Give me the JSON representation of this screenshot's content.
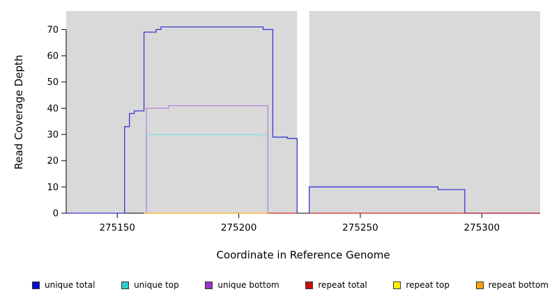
{
  "chart_data": {
    "type": "line",
    "subtype": "step-coverage",
    "title": "",
    "xlabel": "Coordinate in Reference Genome",
    "ylabel": "Read Coverage Depth",
    "xlim": [
      275129,
      275324
    ],
    "ylim": [
      0,
      77
    ],
    "x_ticks": [
      275150,
      275200,
      275250,
      275300
    ],
    "y_ticks": [
      0,
      10,
      20,
      30,
      40,
      50,
      60,
      70
    ],
    "plot_bg": "#d9d9d9",
    "axis_color": "#000000",
    "gap_regions": [
      [
        275224,
        275229
      ]
    ],
    "series": [
      {
        "name": "unique total",
        "color": "#3737d2",
        "segments": [
          [
            [
              275129,
              0
            ],
            [
              275153,
              0
            ],
            [
              275153,
              33
            ],
            [
              275155,
              33
            ],
            [
              275155,
              38
            ],
            [
              275157,
              38
            ],
            [
              275157,
              39
            ],
            [
              275161,
              39
            ],
            [
              275161,
              69
            ],
            [
              275166,
              69
            ],
            [
              275166,
              70
            ],
            [
              275168,
              70
            ],
            [
              275168,
              71
            ],
            [
              275210,
              71
            ],
            [
              275210,
              70
            ],
            [
              275214,
              70
            ],
            [
              275214,
              29
            ],
            [
              275220,
              29
            ],
            [
              275220,
              28.5
            ],
            [
              275224,
              28.5
            ],
            [
              275224,
              0
            ]
          ],
          [
            [
              275229,
              0
            ],
            [
              275229,
              10
            ],
            [
              275282,
              10
            ],
            [
              275282,
              9
            ],
            [
              275293,
              9
            ],
            [
              275293,
              0
            ],
            [
              275324,
              0
            ]
          ]
        ]
      },
      {
        "name": "unique top",
        "color": "#7de2e2",
        "segments": [
          [
            [
              275162,
              0
            ],
            [
              275162,
              30
            ],
            [
              275209,
              30
            ],
            [
              275209,
              29.5
            ],
            [
              275212,
              29.5
            ],
            [
              275212,
              0
            ]
          ]
        ]
      },
      {
        "name": "unique bottom",
        "color": "#b288da",
        "segments": [
          [
            [
              275162,
              0
            ],
            [
              275162,
              40
            ],
            [
              275171,
              40
            ],
            [
              275171,
              41
            ],
            [
              275212,
              41
            ],
            [
              275212,
              0
            ]
          ]
        ]
      },
      {
        "name": "repeat total",
        "color": "#d02a2a",
        "segments": [
          [
            [
              275212,
              0
            ],
            [
              275224,
              0
            ]
          ],
          [
            [
              275229,
              0
            ],
            [
              275324,
              0
            ]
          ]
        ]
      },
      {
        "name": "repeat top",
        "color": "#ffff4d",
        "segments": [
          [
            [
              275161,
              0
            ],
            [
              275212,
              0
            ]
          ]
        ]
      },
      {
        "name": "repeat bottom",
        "color": "#ffa733",
        "segments": [
          [
            [
              275161,
              0
            ],
            [
              275212,
              0
            ]
          ]
        ]
      }
    ],
    "legend": [
      {
        "label": "unique total",
        "color": "#0b0bcb"
      },
      {
        "label": "unique top",
        "color": "#2ecccc"
      },
      {
        "label": "unique bottom",
        "color": "#9537c7"
      },
      {
        "label": "repeat total",
        "color": "#c80d0d"
      },
      {
        "label": "repeat top",
        "color": "#fff200"
      },
      {
        "label": "repeat bottom",
        "color": "#ff9e0e"
      }
    ]
  }
}
